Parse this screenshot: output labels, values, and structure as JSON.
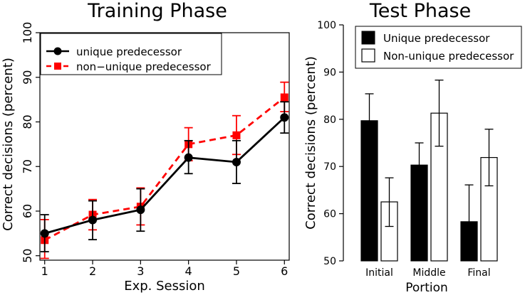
{
  "chart_data": [
    {
      "type": "line",
      "title": "Training Phase",
      "xlabel": "Exp. Session",
      "ylabel": "Correct decisions (percent)",
      "x": [
        1,
        2,
        3,
        4,
        5,
        6
      ],
      "xticks": [
        "1",
        "2",
        "3",
        "4",
        "5",
        "6"
      ],
      "yticks": [
        "50",
        "60",
        "70",
        "80",
        "90",
        "100"
      ],
      "xlim": [
        0.9,
        6.1
      ],
      "ylim": [
        49,
        100
      ],
      "legend_position": "top-left",
      "series": [
        {
          "name": "unique predecessor",
          "color": "#000000",
          "line_style": "solid",
          "marker": "circle",
          "values": [
            55.0,
            58.0,
            60.3,
            72.0,
            71.0,
            81.0
          ],
          "error_low": [
            50.9,
            53.6,
            55.5,
            68.4,
            66.2,
            77.5
          ],
          "error_high": [
            59.2,
            62.3,
            65.0,
            75.8,
            75.8,
            84.5
          ]
        },
        {
          "name": "non−unique predecessor",
          "color": "#ff0000",
          "line_style": "dashed",
          "marker": "square",
          "values": [
            53.5,
            59.2,
            61.0,
            75.0,
            77.0,
            85.5
          ],
          "error_low": [
            49.4,
            55.8,
            56.9,
            71.3,
            72.7,
            82.3
          ],
          "error_high": [
            58.1,
            62.6,
            65.2,
            78.7,
            81.4,
            88.9
          ]
        }
      ]
    },
    {
      "type": "bar",
      "title": "Test Phase",
      "xlabel": "Portion",
      "ylabel": "Correct decisions (percent)",
      "categories": [
        "Initial",
        "Middle",
        "Final"
      ],
      "yticks": [
        "50",
        "60",
        "70",
        "80",
        "90",
        "100"
      ],
      "ylim": [
        50,
        100
      ],
      "legend_position": "top",
      "series": [
        {
          "name": "Unique predecessor",
          "fill": "#000000",
          "values": [
            79.7,
            70.3,
            58.3
          ],
          "error_low": [
            74.0,
            65.6,
            50.5
          ],
          "error_high": [
            85.4,
            75.0,
            66.1
          ]
        },
        {
          "name": "Non-unique predecessor",
          "fill": "#ffffff",
          "values": [
            62.5,
            81.3,
            71.9
          ],
          "error_low": [
            57.3,
            74.3,
            65.9
          ],
          "error_high": [
            67.6,
            88.3,
            77.9
          ]
        }
      ]
    }
  ]
}
